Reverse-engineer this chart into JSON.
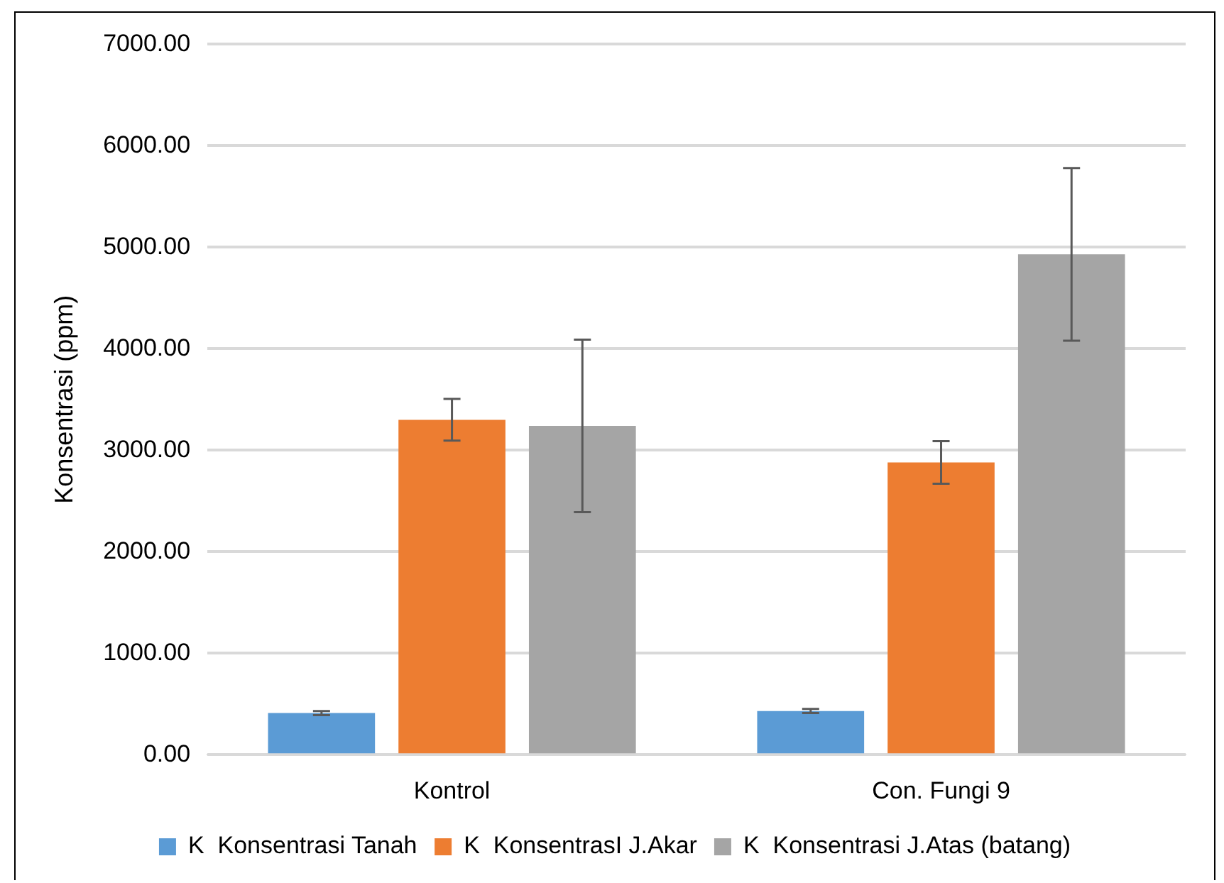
{
  "chart_data": {
    "type": "bar",
    "ylabel": "Konsentrasi (ppm)",
    "categories": [
      "Kontrol",
      "Con. Fungi 9"
    ],
    "series": [
      {
        "name": "K  Konsentrasi Tanah",
        "color": "#5b9bd5",
        "values": [
          410,
          430
        ],
        "errors": [
          20,
          20
        ]
      },
      {
        "name": "K  KonsentrasI J.Akar",
        "color": "#ed7d31",
        "values": [
          3300,
          2880
        ],
        "errors": [
          205,
          210
        ]
      },
      {
        "name": "K  Konsentrasi J.Atas (batang)",
        "color": "#a5a5a5",
        "values": [
          3240,
          4930
        ],
        "errors": [
          850,
          850
        ]
      }
    ],
    "ylim": [
      0,
      7000
    ],
    "yticks": [
      {
        "value": 0,
        "label": "0.00"
      },
      {
        "value": 1000,
        "label": "1000.00"
      },
      {
        "value": 2000,
        "label": "2000.00"
      },
      {
        "value": 3000,
        "label": "3000.00"
      },
      {
        "value": 4000,
        "label": "4000.00"
      },
      {
        "value": 5000,
        "label": "5000.00"
      },
      {
        "value": 6000,
        "label": "6000.00"
      },
      {
        "value": 7000,
        "label": "7000.00"
      }
    ],
    "grid": "y",
    "legend": "bottom"
  }
}
